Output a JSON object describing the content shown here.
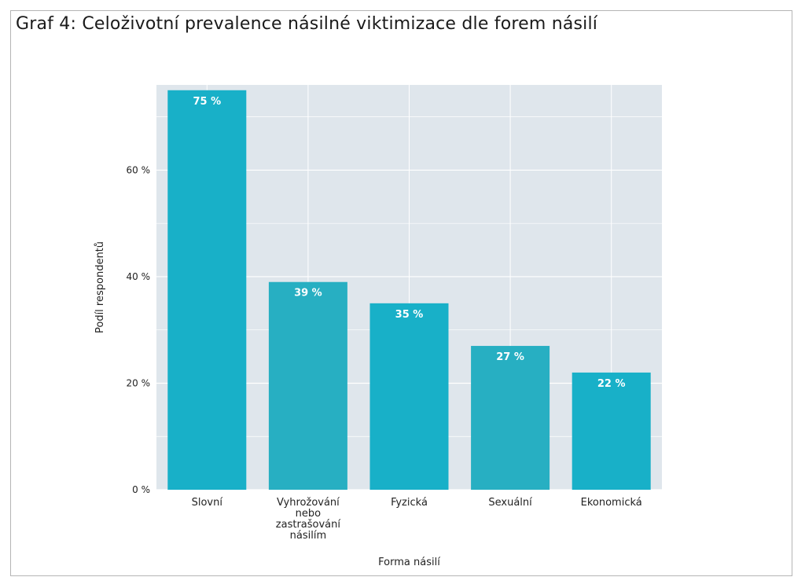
{
  "title": "Graf 4: Celoživotní prevalence násilné viktimizace dle forem násilí",
  "colors": {
    "plot_background": "#dfe6ec",
    "grid": "#ffffff",
    "bar_primary": "#18b0c8",
    "bar_secondary": "#27afc2",
    "frame_border": "#b5b5b5"
  },
  "chart_data": {
    "type": "bar",
    "categories": [
      [
        "Slovní"
      ],
      [
        "Vyhrožování",
        "nebo",
        "zastrašování",
        "násilím"
      ],
      [
        "Fyzická"
      ],
      [
        "Sexuální"
      ],
      [
        "Ekonomická"
      ]
    ],
    "values": [
      75,
      39,
      35,
      27,
      22
    ],
    "data_labels": [
      "75 %",
      "39 %",
      "35 %",
      "27 %",
      "22 %"
    ],
    "xlabel": "Forma násilí",
    "ylabel": "Podíl respondentů",
    "ylim": [
      0,
      76
    ],
    "y_ticks": [
      0,
      20,
      40,
      60
    ],
    "y_tick_labels": [
      "0 %",
      "20 %",
      "40 %",
      "60 %"
    ],
    "grid": true,
    "legend": "none"
  }
}
